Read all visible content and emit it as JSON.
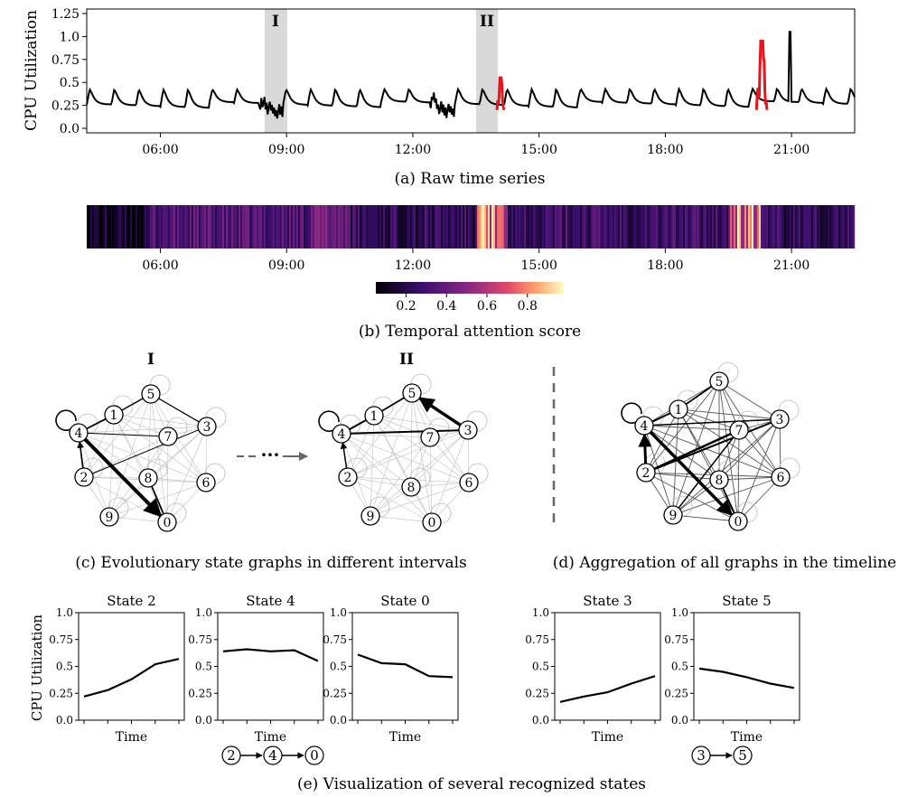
{
  "panel_a": {
    "caption": "(a) Raw time series",
    "ylabel": "CPU Utilization",
    "y_ticks": [
      "0.0",
      "0.25",
      "0.5",
      "0.75",
      "1.0",
      "1.25"
    ],
    "x_ticks": [
      "06:00",
      "09:00",
      "12:00",
      "15:00",
      "18:00",
      "21:00"
    ],
    "highlight_labels": [
      "I",
      "II"
    ]
  },
  "panel_b": {
    "caption": "(b) Temporal attention score",
    "x_ticks": [
      "06:00",
      "09:00",
      "12:00",
      "15:00",
      "18:00",
      "21:00"
    ],
    "colorbar_ticks": [
      "0.2",
      "0.4",
      "0.6",
      "0.8"
    ]
  },
  "panel_c": {
    "caption": "(c) Evolutionary state graphs in different intervals",
    "titles": [
      "I",
      "II"
    ],
    "ellipsis": "···"
  },
  "panel_d": {
    "caption": "(d) Aggregation of all graphs in the timeline"
  },
  "panel_e": {
    "caption": "(e) Visualization of several recognized states",
    "ylabel": "CPU Utilization",
    "xlabel": "Time",
    "y_ticks": [
      "0.0",
      "0.25",
      "0.5",
      "0.75",
      "1.0"
    ],
    "sequence_1": [
      "2",
      "4",
      "0"
    ],
    "sequence_2": [
      "3",
      "5"
    ]
  },
  "colors": {
    "series": "#000000",
    "anomaly": "#e8141b",
    "highlight": "#d9d9d9"
  },
  "chart_data": [
    {
      "type": "line",
      "title": "(a) Raw time series",
      "ylabel": "CPU Utilization",
      "ylim": [
        0,
        1.25
      ],
      "x_range": [
        "04:15",
        "22:30"
      ],
      "x_ticks": [
        "06:00",
        "09:00",
        "12:00",
        "15:00",
        "18:00",
        "21:00"
      ],
      "highlighted_intervals": [
        {
          "label": "I",
          "start": "08:20",
          "end": "08:55"
        },
        {
          "label": "II",
          "start": "13:25",
          "end": "14:00"
        }
      ],
      "anomalies": [
        {
          "start": "14:00",
          "end": "14:10",
          "peak": 0.55
        },
        {
          "start": "20:10",
          "end": "20:25",
          "peak": 0.95
        }
      ],
      "series": [
        {
          "period_minutes": 35,
          "baseline": [
            0.25,
            0.32
          ],
          "peak": [
            0.45,
            0.8
          ],
          "max": 1.05
        }
      ]
    },
    {
      "type": "heatmap",
      "title": "(b) Temporal attention score",
      "x_range": [
        "04:15",
        "22:30"
      ],
      "colorbar_range": [
        0.05,
        0.98
      ],
      "colorbar_ticks": [
        0.2,
        0.4,
        0.6,
        0.8
      ],
      "segments": [
        {
          "start": "04:15",
          "end": "05:45",
          "level": 0.08
        },
        {
          "start": "05:45",
          "end": "09:30",
          "level": 0.3
        },
        {
          "start": "09:30",
          "end": "10:30",
          "level": 0.4
        },
        {
          "start": "10:30",
          "end": "13:30",
          "level": 0.2
        },
        {
          "start": "13:30",
          "end": "14:15",
          "level": 0.85
        },
        {
          "start": "14:15",
          "end": "19:30",
          "level": 0.25
        },
        {
          "start": "19:30",
          "end": "20:15",
          "level": 0.85
        },
        {
          "start": "20:15",
          "end": "22:30",
          "level": 0.2
        }
      ]
    },
    {
      "type": "line",
      "title": "State 2",
      "xlabel": "Time",
      "ylabel": "CPU Utilization",
      "ylim": [
        0,
        1.0
      ],
      "values": [
        0.22,
        0.28,
        0.38,
        0.52,
        0.57
      ]
    },
    {
      "type": "line",
      "title": "State 4",
      "xlabel": "Time",
      "ylim": [
        0,
        1.0
      ],
      "values": [
        0.64,
        0.66,
        0.64,
        0.65,
        0.55
      ]
    },
    {
      "type": "line",
      "title": "State 0",
      "xlabel": "Time",
      "ylim": [
        0,
        1.0
      ],
      "values": [
        0.61,
        0.53,
        0.52,
        0.41,
        0.4
      ]
    },
    {
      "type": "line",
      "title": "State 3",
      "xlabel": "Time",
      "ylim": [
        0,
        1.0
      ],
      "values": [
        0.17,
        0.22,
        0.26,
        0.34,
        0.41
      ]
    },
    {
      "type": "line",
      "title": "State 5",
      "xlabel": "Time",
      "ylim": [
        0,
        1.0
      ],
      "values": [
        0.48,
        0.45,
        0.4,
        0.34,
        0.3
      ]
    }
  ]
}
